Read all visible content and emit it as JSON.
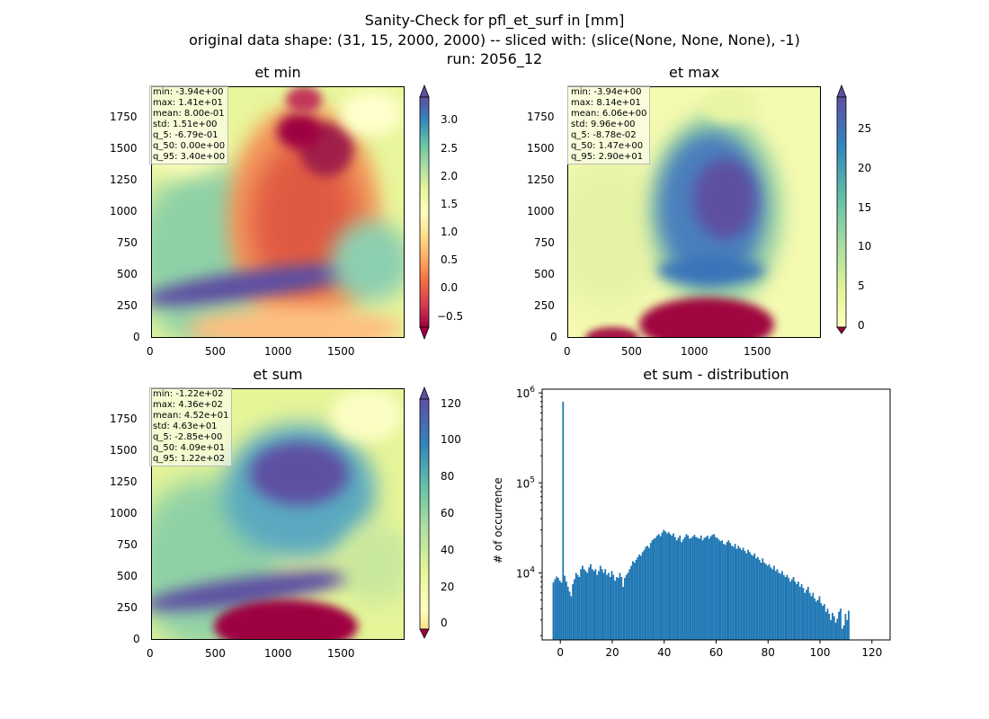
{
  "figure": {
    "title_lines": [
      "Sanity-Check for pfl_et_surf in [mm]",
      "original data shape: (31, 15, 2000, 2000) -- sliced with: (slice(None, None, None), -1)",
      "run: 2056_12"
    ]
  },
  "map_axes": {
    "x_ticks": [
      "0",
      "500",
      "1000",
      "1500"
    ],
    "y_ticks": [
      "0",
      "250",
      "500",
      "750",
      "1000",
      "1250",
      "1500",
      "1750"
    ]
  },
  "panels": {
    "et_min": {
      "title": "et min",
      "stats": [
        "min: -3.94e+00",
        "max: 1.41e+01",
        "mean: 8.00e-01",
        "std: 1.51e+00",
        "q_5: -6.79e-01",
        "q_50: 0.00e+00",
        "q_95: 3.40e+00"
      ],
      "colorbar_ticks": [
        "3.0",
        "2.5",
        "2.0",
        "1.5",
        "1.0",
        "0.5",
        "0.0",
        "−0.5"
      ]
    },
    "et_max": {
      "title": "et max",
      "stats": [
        "min: -3.94e+00",
        "max: 8.14e+01",
        "mean: 6.06e+00",
        "std: 9.96e+00",
        "q_5: -8.78e-02",
        "q_50: 1.47e+00",
        "q_95: 2.90e+01"
      ],
      "colorbar_ticks": [
        "25",
        "20",
        "15",
        "10",
        "5",
        "0"
      ]
    },
    "et_sum": {
      "title": "et sum",
      "stats": [
        "min: -1.22e+02",
        "max: 4.36e+02",
        "mean: 4.52e+01",
        "std: 4.63e+01",
        "q_5: -2.85e+00",
        "q_50: 4.09e+01",
        "q_95: 1.22e+02"
      ],
      "colorbar_ticks": [
        "120",
        "100",
        "80",
        "60",
        "40",
        "20",
        "0"
      ]
    }
  },
  "colors": {
    "spectral": [
      "#9e0142",
      "#d53e4f",
      "#f46d43",
      "#fdae61",
      "#fee08b",
      "#ffffbf",
      "#e6f598",
      "#abdda4",
      "#66c2a5",
      "#3288bd",
      "#5e4fa2"
    ],
    "hist_bar": "#1f77b4"
  },
  "chart_data": {
    "type": "bar",
    "title": "et sum - distribution",
    "xlabel": "",
    "ylabel": "# of occurrence",
    "y_scale": "log",
    "xlim": [
      -7,
      127
    ],
    "ylim": [
      1800,
      1100000
    ],
    "x_ticks": [
      0,
      20,
      40,
      60,
      80,
      100,
      120
    ],
    "x_tick_labels": [
      "0",
      "20",
      "40",
      "60",
      "80",
      "100",
      "120"
    ],
    "y_ticks": [
      10000,
      100000,
      1000000
    ],
    "y_tick_labels": [
      "10^4",
      "10^5",
      "10^6"
    ],
    "bin_start": -3,
    "bin_width": 0.625,
    "counts": [
      7800,
      8500,
      9100,
      8800,
      8200,
      7800,
      800000,
      9300,
      8000,
      7000,
      6200,
      5500,
      7500,
      8500,
      10000,
      9500,
      9000,
      11000,
      12000,
      11000,
      10500,
      10000,
      11500,
      12500,
      11000,
      10500,
      11000,
      9500,
      10500,
      12000,
      11000,
      10000,
      11000,
      9500,
      10000,
      9000,
      10500,
      9500,
      8200,
      9000,
      8800,
      10000,
      9000,
      7000,
      8800,
      9500,
      10000,
      11000,
      12000,
      13500,
      13000,
      14000,
      15000,
      16000,
      15500,
      17000,
      18000,
      19500,
      20000,
      19000,
      21500,
      23000,
      24000,
      24500,
      26000,
      27000,
      25500,
      28000,
      30000,
      29000,
      27500,
      28500,
      27000,
      26000,
      27500,
      25000,
      23000,
      24500,
      26000,
      22000,
      23500,
      25000,
      27000,
      26000,
      24000,
      24500,
      25500,
      26500,
      25000,
      24500,
      24000,
      26000,
      23000,
      24500,
      25000,
      26000,
      24000,
      25500,
      26500,
      27000,
      25000,
      24500,
      23500,
      22500,
      23000,
      21000,
      20500,
      22000,
      23000,
      21500,
      20000,
      19500,
      21000,
      18500,
      20000,
      19000,
      18000,
      19000,
      17500,
      16500,
      18000,
      17000,
      16000,
      15500,
      16500,
      14500,
      15000,
      14000,
      13000,
      14500,
      13000,
      12500,
      12000,
      12500,
      11500,
      11000,
      12000,
      10500,
      11000,
      10000,
      9800,
      10500,
      9500,
      9000,
      9500,
      8800,
      8000,
      8500,
      9000,
      8000,
      7500,
      8000,
      7000,
      7500,
      6800,
      6000,
      6500,
      7000,
      6000,
      5500,
      6000,
      5200,
      4800,
      5000,
      5500,
      4600,
      4300,
      4500,
      3700,
      4000,
      3500,
      3000,
      3600,
      3300,
      2800,
      3100,
      3700,
      4000,
      2400,
      2600,
      3500,
      3000,
      3800
    ]
  }
}
